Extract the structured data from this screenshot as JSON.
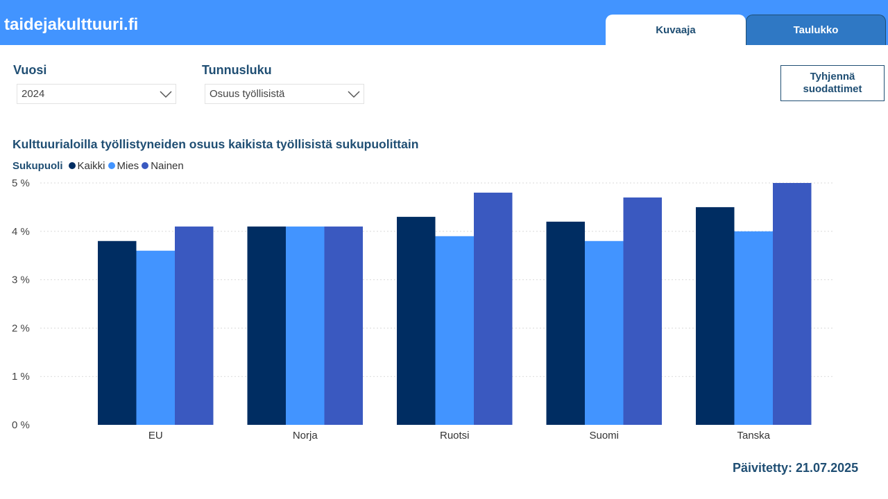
{
  "header": {
    "site_title": "taidejakulttuuri.fi",
    "tabs": [
      {
        "label": "Kuvaaja",
        "active": true
      },
      {
        "label": "Taulukko",
        "active": false
      }
    ]
  },
  "filters": {
    "year_label": "Vuosi",
    "year_value": "2024",
    "metric_label": "Tunnusluku",
    "metric_value": "Osuus työllisistä",
    "clear_button": "Tyhjennä\nsuodattimet"
  },
  "colors": {
    "kaikki": "#002d62",
    "mies": "#4294ff",
    "nainen": "#3a59c0",
    "header": "#4294ff",
    "text_dark": "#1f4e73"
  },
  "chart_data": {
    "type": "bar",
    "title": "Kulttuurialoilla työllistyneiden osuus kaikista työllisistä sukupuolittain",
    "legend_title": "Sukupuoli",
    "legend_placement": "top-left",
    "categories": [
      "EU",
      "Norja",
      "Ruotsi",
      "Suomi",
      "Tanska"
    ],
    "series": [
      {
        "name": "Kaikki",
        "values": [
          3.8,
          4.1,
          4.3,
          4.2,
          4.5
        ]
      },
      {
        "name": "Mies",
        "values": [
          3.6,
          4.1,
          3.9,
          3.8,
          4.0
        ]
      },
      {
        "name": "Nainen",
        "values": [
          4.1,
          4.1,
          4.8,
          4.7,
          5.0
        ]
      }
    ],
    "y_ticks": [
      "0 %",
      "1 %",
      "2 %",
      "3 %",
      "4 %",
      "5 %"
    ],
    "ylim": [
      0,
      5
    ],
    "grid": true
  },
  "footer": {
    "updated": "Päivitetty: 21.07.2025"
  }
}
